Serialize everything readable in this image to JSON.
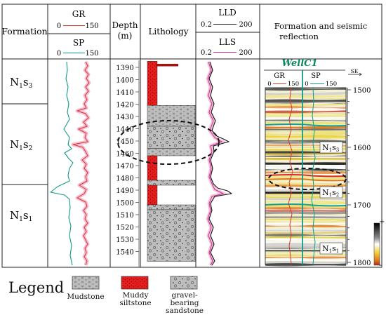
{
  "headers": {
    "formation": "Formation",
    "gr": "GR",
    "gr_scale_min": "0",
    "gr_scale_max": "150",
    "sp": "SP",
    "sp_scale_min": "0",
    "sp_scale_max": "150",
    "depth": "Depth",
    "depth_unit": "(m)",
    "lithology": "Lithology",
    "lld": "LLD",
    "lld_scale_min": "0.2",
    "lld_scale_max": "200",
    "lls": "LLS",
    "lls_scale_min": "0.2",
    "lls_scale_max": "200",
    "seismic_line1": "Formation and seismic",
    "seismic_line2": "reflection"
  },
  "formations": [
    {
      "base": "N",
      "sub": "1",
      "tail": "s",
      "sub2": "3"
    },
    {
      "base": "N",
      "sub": "1",
      "tail": "s",
      "sub2": "2"
    },
    {
      "base": "N",
      "sub": "1",
      "tail": "s",
      "sub2": "1"
    }
  ],
  "depth_ticks": [
    "1390",
    "1400",
    "1410",
    "1420",
    "1430",
    "1440",
    "1450",
    "1460",
    "1470",
    "1480",
    "1490",
    "1500",
    "1510",
    "1520",
    "1530",
    "1540"
  ],
  "lithology_intervals": [
    {
      "top": 1385,
      "bottom": 1421,
      "type": "muddy-siltstone"
    },
    {
      "top": 1421,
      "bottom": 1438,
      "type": "mudstone"
    },
    {
      "top": 1438,
      "bottom": 1456,
      "type": "gravel-sandstone"
    },
    {
      "top": 1456,
      "bottom": 1462,
      "type": "mudstone"
    },
    {
      "top": 1462,
      "bottom": 1482,
      "type": "muddy-siltstone"
    },
    {
      "top": 1482,
      "bottom": 1486,
      "type": "gravel-sandstone"
    },
    {
      "top": 1486,
      "bottom": 1502,
      "type": "muddy-siltstone"
    },
    {
      "top": 1502,
      "bottom": 1506,
      "type": "gravel-sandstone"
    },
    {
      "top": 1506,
      "bottom": 1548,
      "type": "gravel-sandstone"
    }
  ],
  "seismic": {
    "well_name": "WellC1",
    "gr": "GR",
    "gr_min": "0",
    "gr_max": "150",
    "sp": "SP",
    "sp_min": "0",
    "sp_max": "150",
    "direction": "SE",
    "time_ticks": [
      "1500",
      "1600",
      "1700",
      "1800"
    ],
    "labels": [
      {
        "base": "N",
        "sub": "1",
        "tail": "s",
        "sub2": "3"
      },
      {
        "base": "N",
        "sub": "1",
        "tail": "s",
        "sub2": "2"
      },
      {
        "base": "N",
        "sub": "1",
        "tail": "s",
        "sub2": "1"
      }
    ],
    "colorbar_plus": "+",
    "colorbar_minus": "-"
  },
  "legend": {
    "title": "Legend",
    "items": [
      {
        "label": "Mudstone"
      },
      {
        "label": "Muddy siltstone"
      },
      {
        "label": "gravel-bearing sandstone"
      }
    ]
  },
  "colors": {
    "gr_curve": "#d23a2a",
    "gr_halo": "#f4a6c8",
    "sp_curve": "#119a86",
    "lld_curve": "#111111",
    "lls_curve": "#c0389a",
    "muddy_siltstone": "#e31d1d",
    "mudstone": "#b8b8b8",
    "well_name": "#0a8a5a"
  }
}
